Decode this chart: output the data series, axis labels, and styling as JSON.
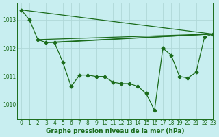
{
  "title": "Graphe pression niveau de la mer (hPa)",
  "bg_color": "#c8eef0",
  "grid_color": "#b0d8d8",
  "line_color": "#1a6b1a",
  "xlim": [
    -0.5,
    23
  ],
  "ylim": [
    1009.5,
    1013.6
  ],
  "yticks": [
    1010,
    1011,
    1012,
    1013
  ],
  "xticks": [
    0,
    1,
    2,
    3,
    4,
    5,
    6,
    7,
    8,
    9,
    10,
    11,
    12,
    13,
    14,
    15,
    16,
    17,
    18,
    19,
    20,
    21,
    22,
    23
  ],
  "main_x": [
    0,
    1,
    2,
    3,
    4,
    5,
    6,
    7,
    8,
    9,
    10,
    11,
    12,
    13,
    14,
    15,
    16,
    17,
    18,
    19,
    20,
    21,
    22,
    23
  ],
  "main_y": [
    1013.35,
    1013.0,
    1012.3,
    1012.2,
    1012.2,
    1011.5,
    1010.65,
    1011.05,
    1011.05,
    1011.0,
    1011.0,
    1010.8,
    1010.75,
    1010.75,
    1010.65,
    1010.4,
    1009.8,
    1012.0,
    1011.75,
    1011.0,
    1010.95,
    1011.15,
    1012.4,
    1012.5
  ],
  "diag_lines": [
    {
      "x": [
        0,
        23
      ],
      "y": [
        1013.35,
        1012.5
      ]
    },
    {
      "x": [
        2,
        23
      ],
      "y": [
        1012.3,
        1012.5
      ]
    },
    {
      "x": [
        3,
        23
      ],
      "y": [
        1012.2,
        1012.5
      ]
    },
    {
      "x": [
        4,
        23
      ],
      "y": [
        1012.2,
        1012.5
      ]
    }
  ],
  "marker_size": 2.5,
  "line_width": 0.9,
  "tick_fontsize": 5.5,
  "xlabel_fontsize": 6.5
}
